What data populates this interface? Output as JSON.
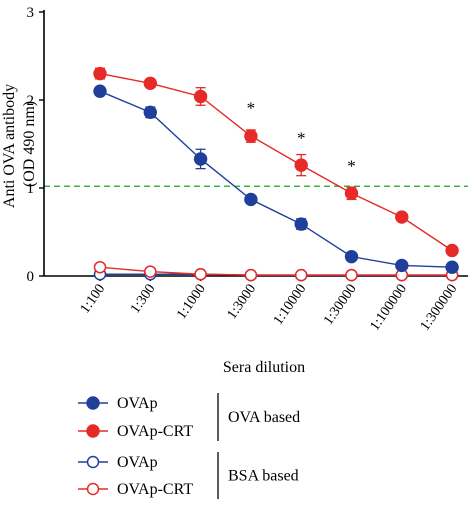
{
  "chart_data": {
    "type": "line",
    "title": "",
    "xlabel": "Sera dilution",
    "ylabel_line1": "Anti OVA antibody",
    "ylabel_line2": "(OD 490 nm)",
    "categories": [
      "1:100",
      "1:300",
      "1:1000",
      "1:3000",
      "1:10000",
      "1:30000",
      "1:100000",
      "1:300000"
    ],
    "ylim": [
      0,
      3
    ],
    "yticks": [
      "0",
      "1",
      "2",
      "3"
    ],
    "threshold": {
      "value": 1.02,
      "color": "#3cb44a",
      "style": "dashed"
    },
    "series": [
      {
        "name": "OVAp",
        "group": "OVA based",
        "color": "#1f3f9a",
        "marker": "filled-circle",
        "values": [
          2.1,
          1.86,
          1.33,
          0.87,
          0.59,
          0.22,
          0.12,
          0.1
        ],
        "errors": [
          0.03,
          0.06,
          0.11,
          0.03,
          0.06,
          0.03,
          0.03,
          0.02
        ]
      },
      {
        "name": "OVAp-CRT",
        "group": "OVA based",
        "color": "#e52a28",
        "marker": "filled-circle",
        "values": [
          2.3,
          2.19,
          2.04,
          1.59,
          1.26,
          0.94,
          0.67,
          0.29
        ],
        "errors": [
          0.06,
          0.03,
          0.1,
          0.07,
          0.12,
          0.07,
          0.03,
          0.02
        ]
      },
      {
        "name": "OVAp",
        "group": "BSA based",
        "color": "#1f3f9a",
        "marker": "open-circle",
        "values": [
          0.02,
          0.02,
          0.02,
          0.01,
          0.01,
          0.01,
          0.01,
          0.01
        ],
        "errors": [
          0,
          0,
          0,
          0,
          0,
          0,
          0,
          0
        ]
      },
      {
        "name": "OVAp-CRT",
        "group": "BSA based",
        "color": "#e52a28",
        "marker": "open-circle",
        "values": [
          0.1,
          0.05,
          0.02,
          0.01,
          0.01,
          0.01,
          0.01,
          0.01
        ],
        "errors": [
          0,
          0,
          0,
          0,
          0,
          0,
          0,
          0
        ]
      }
    ],
    "annotations": [
      {
        "text": "*",
        "category": "1:3000",
        "y": 1.95
      },
      {
        "text": "*",
        "category": "1:10000",
        "y": 1.61
      },
      {
        "text": "*",
        "category": "1:30000",
        "y": 1.29
      }
    ],
    "legend": {
      "position": "bottom",
      "groups": [
        {
          "label": "OVA based",
          "items": [
            0,
            1
          ]
        },
        {
          "label": "BSA based",
          "items": [
            2,
            3
          ]
        }
      ]
    }
  }
}
